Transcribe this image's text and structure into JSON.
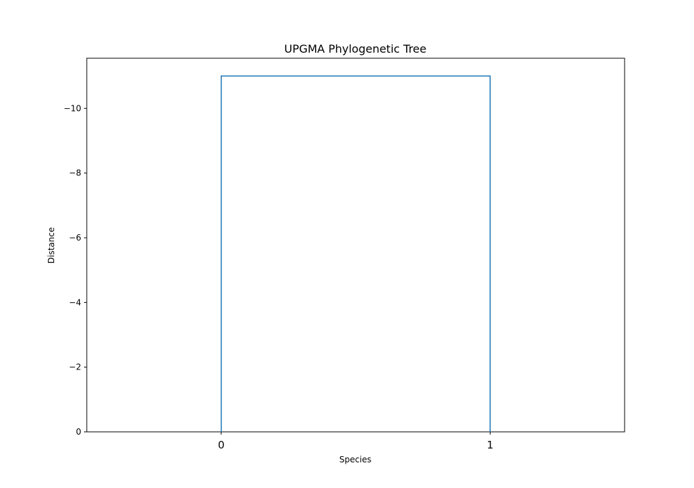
{
  "chart_data": {
    "type": "dendrogram",
    "title": "UPGMA Phylogenetic Tree",
    "xlabel": "Species",
    "ylabel": "Distance",
    "leaves": [
      "0",
      "1"
    ],
    "links": [
      {
        "left_leaf": 0,
        "right_leaf": 1,
        "height": -11.0
      }
    ],
    "yticks": [
      0,
      -2,
      -4,
      -6,
      -8,
      -10
    ],
    "ytick_labels": [
      "0",
      "−2",
      "−4",
      "−6",
      "−8",
      "−10"
    ],
    "ylim": [
      0,
      -11.55
    ],
    "line_color": "#1f77b4",
    "grid": false,
    "legend": "none"
  }
}
